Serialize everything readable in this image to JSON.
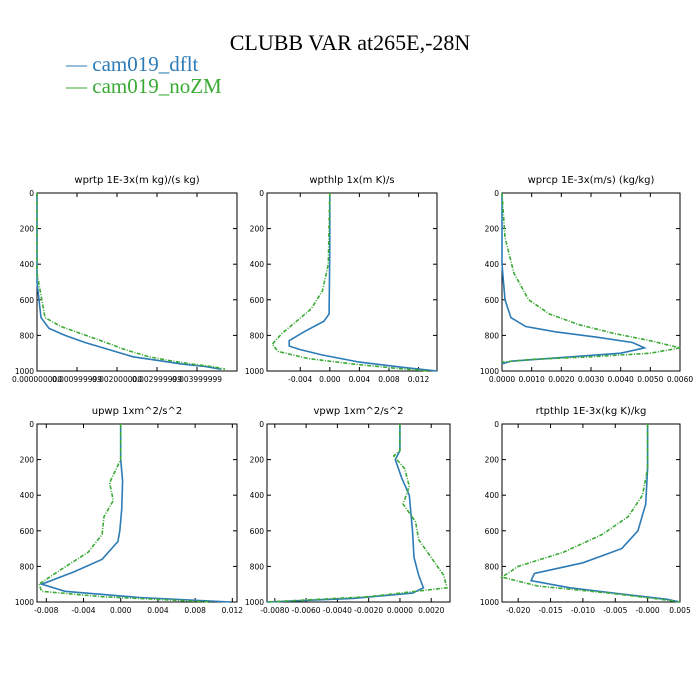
{
  "figure_title": "CLUBB VAR at265E,-28N",
  "legend": [
    {
      "label": "— cam019_dflt",
      "color": "#2c7bb6"
    },
    {
      "label": "— cam019_noZM",
      "color": "#3aaa35"
    }
  ],
  "chart_data": [
    {
      "type": "line",
      "title": "wprtp  1E-3x(m kg)/(s kg)",
      "xlim": [
        0,
        0.005
      ],
      "ylim": [
        1000,
        0
      ],
      "xticks": [
        0,
        0.001,
        0.002,
        0.003,
        0.004
      ],
      "xtick_labels": [
        "0.000000000",
        "0.000999999",
        "0.002000000",
        "0.002999999",
        "0.003999999"
      ],
      "yticks": [
        0,
        200,
        400,
        600,
        800,
        1000
      ],
      "ytick_labels": [
        "0",
        "200",
        "400",
        "600",
        "800",
        "1000"
      ],
      "series": [
        {
          "name": "cam019_dflt",
          "x": [
            0,
            0,
            0.0001,
            0.0003,
            0.0007,
            0.0012,
            0.0018,
            0.0024,
            0.003,
            0.0036,
            0.0042,
            0.0046
          ],
          "y": [
            0,
            500,
            700,
            760,
            800,
            840,
            880,
            920,
            940,
            960,
            975,
            990
          ]
        },
        {
          "name": "cam019_noZM",
          "x": [
            0,
            0,
            0.0002,
            0.0006,
            0.0011,
            0.0016,
            0.0022,
            0.0028,
            0.0034,
            0.0039,
            0.0044,
            0.0047
          ],
          "y": [
            0,
            450,
            700,
            750,
            790,
            830,
            880,
            920,
            945,
            962,
            976,
            990
          ]
        }
      ]
    },
    {
      "type": "line",
      "title": "wpthlp  1x(m K)/s",
      "xlim": [
        -0.0085,
        0.0145
      ],
      "ylim": [
        1000,
        0
      ],
      "xticks": [
        -0.004,
        0,
        0.004,
        0.008,
        0.012
      ],
      "xtick_labels": [
        "-0.004",
        "0.000",
        "0.004",
        "0.008",
        "0.012"
      ],
      "yticks": [
        0,
        200,
        400,
        600,
        800,
        1000
      ],
      "ytick_labels": [
        "0",
        "200",
        "400",
        "600",
        "800",
        "1000"
      ],
      "series": [
        {
          "name": "cam019_dflt",
          "x": [
            0,
            0,
            -0.0001,
            -0.0008,
            -0.0035,
            -0.0055,
            -0.0055,
            -0.004,
            -0.001,
            0.004,
            0.01,
            0.0145
          ],
          "y": [
            0,
            300,
            680,
            720,
            780,
            830,
            860,
            880,
            910,
            950,
            980,
            1000
          ]
        },
        {
          "name": "cam019_noZM",
          "x": [
            0,
            -0.0002,
            -0.001,
            -0.0025,
            -0.0045,
            -0.0065,
            -0.0078,
            -0.007,
            -0.003,
            0.003,
            0.009,
            0.0135
          ],
          "y": [
            0,
            400,
            550,
            650,
            720,
            790,
            850,
            890,
            930,
            960,
            985,
            1000
          ]
        }
      ]
    },
    {
      "type": "line",
      "title": "wprcp  1E-3x(m/s) (kg/kg)",
      "xlim": [
        0,
        0.006
      ],
      "ylim": [
        1000,
        0
      ],
      "xticks": [
        0,
        0.001,
        0.002,
        0.003,
        0.004,
        0.005,
        0.006
      ],
      "xtick_labels": [
        "0.0000",
        "0.0010",
        "0.0020",
        "0.0030",
        "0.0040",
        "0.0050",
        "0.0060"
      ],
      "yticks": [
        0,
        200,
        400,
        600,
        800,
        1000
      ],
      "ytick_labels": [
        "0",
        "200",
        "400",
        "600",
        "800",
        "1000"
      ],
      "series": [
        {
          "name": "cam019_dflt",
          "x": [
            0,
            0,
            0.0001,
            0.0003,
            0.0008,
            0.0018,
            0.0032,
            0.0044,
            0.0048,
            0.004,
            0.002,
            0.0003,
            0
          ],
          "y": [
            0,
            400,
            600,
            700,
            750,
            780,
            810,
            840,
            870,
            900,
            925,
            945,
            960
          ]
        },
        {
          "name": "cam019_noZM",
          "x": [
            0,
            0.0001,
            0.0004,
            0.0009,
            0.0016,
            0.0026,
            0.0038,
            0.005,
            0.006,
            0.005,
            0.003,
            0.001,
            0
          ],
          "y": [
            0,
            250,
            450,
            600,
            680,
            740,
            790,
            830,
            870,
            900,
            920,
            935,
            950
          ]
        }
      ]
    },
    {
      "type": "line",
      "title": "upwp  1xm^2/s^2",
      "xlim": [
        -0.009,
        0.0125
      ],
      "ylim": [
        1000,
        0
      ],
      "xticks": [
        -0.008,
        -0.004,
        0,
        0.004,
        0.008,
        0.012
      ],
      "xtick_labels": [
        "-0.008",
        "-0.004",
        "0.000",
        "0.004",
        "0.008",
        "0.012"
      ],
      "yticks": [
        0,
        200,
        400,
        600,
        800,
        1000
      ],
      "ytick_labels": [
        "0",
        "200",
        "400",
        "600",
        "800",
        "1000"
      ],
      "series": [
        {
          "name": "cam019_dflt",
          "x": [
            0,
            0,
            0.0002,
            0.0001,
            -0.0001,
            -0.0003,
            -0.002,
            -0.005,
            -0.0085,
            -0.006,
            0.002,
            0.0118
          ],
          "y": [
            0,
            200,
            320,
            480,
            600,
            660,
            760,
            830,
            900,
            940,
            975,
            1000
          ]
        },
        {
          "name": "cam019_noZM",
          "x": [
            0,
            0,
            -0.0012,
            -0.0008,
            -0.0018,
            -0.002,
            -0.0035,
            -0.0065,
            -0.0088,
            -0.0085,
            -0.002,
            0.0098
          ],
          "y": [
            0,
            200,
            330,
            430,
            520,
            620,
            720,
            820,
            900,
            940,
            970,
            1000
          ]
        }
      ]
    },
    {
      "type": "line",
      "title": "vpwp  1xm^2/s^2",
      "xlim": [
        -0.0085,
        0.0032
      ],
      "ylim": [
        1000,
        0
      ],
      "xticks": [
        -0.008,
        -0.006,
        -0.004,
        -0.002,
        0,
        0.002
      ],
      "xtick_labels": [
        "-0.0080",
        "-0.0060",
        "-0.0040",
        "-0.0020",
        "0.0000",
        "0.0020"
      ],
      "yticks": [
        0,
        200,
        400,
        600,
        800,
        1000
      ],
      "ytick_labels": [
        "0",
        "200",
        "400",
        "600",
        "800",
        "1000"
      ],
      "series": [
        {
          "name": "cam019_dflt",
          "x": [
            0,
            0,
            -0.0003,
            0.0001,
            0.0006,
            0.0007,
            0.0008,
            0.0009,
            0.0012,
            0.0015,
            0.0008,
            -0.003,
            -0.0085
          ],
          "y": [
            0,
            150,
            200,
            300,
            400,
            500,
            600,
            750,
            850,
            920,
            950,
            980,
            1000
          ]
        },
        {
          "name": "cam019_noZM",
          "x": [
            0,
            0,
            -0.0004,
            0.0003,
            0.0006,
            0.0002,
            0.001,
            0.0012,
            0.002,
            0.0028,
            0.003,
            -0.002,
            -0.0085
          ],
          "y": [
            0,
            150,
            180,
            250,
            350,
            450,
            550,
            650,
            750,
            850,
            920,
            970,
            1000
          ]
        }
      ]
    },
    {
      "type": "line",
      "title": "rtpthlp  1E-3x(kg K)/kg",
      "xlim": [
        -0.0225,
        0.005
      ],
      "ylim": [
        1000,
        0
      ],
      "xticks": [
        -0.02,
        -0.015,
        -0.01,
        -0.005,
        0,
        0.005
      ],
      "xtick_labels": [
        "-0.020",
        "-0.015",
        "-0.010",
        "-0.005",
        "-0.000",
        "0.005"
      ],
      "yticks": [
        0,
        200,
        400,
        600,
        800,
        1000
      ],
      "ytick_labels": [
        "0",
        "200",
        "400",
        "600",
        "800",
        "1000"
      ],
      "series": [
        {
          "name": "cam019_dflt",
          "x": [
            0,
            0,
            -0.0003,
            -0.0015,
            -0.004,
            -0.01,
            -0.0175,
            -0.018,
            -0.012,
            -0.004,
            0.003,
            0.005
          ],
          "y": [
            0,
            250,
            450,
            600,
            700,
            780,
            840,
            880,
            920,
            955,
            985,
            1000
          ]
        },
        {
          "name": "cam019_noZM",
          "x": [
            0,
            0,
            -0.0008,
            -0.003,
            -0.007,
            -0.013,
            -0.02,
            -0.0225,
            -0.017,
            -0.006,
            0.002,
            0.005
          ],
          "y": [
            0,
            250,
            400,
            520,
            620,
            720,
            800,
            860,
            910,
            950,
            985,
            1000
          ]
        }
      ]
    }
  ]
}
